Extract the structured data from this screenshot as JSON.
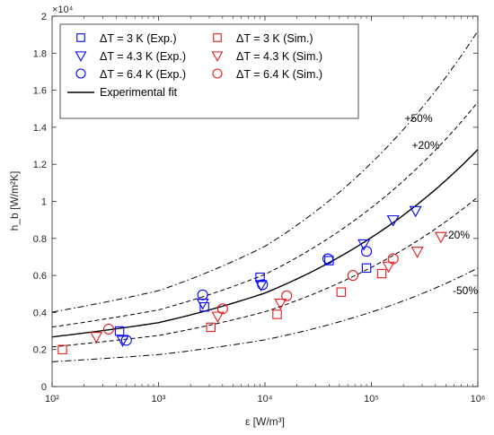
{
  "chart_data": {
    "type": "scatter",
    "xscale": "log",
    "xlim": [
      100,
      1000000
    ],
    "ylim": [
      0,
      20000
    ],
    "ylabel": "h_b [W/m²K]",
    "xlabel": "ε [W/m³]",
    "y_exponent_label": "×10⁴",
    "x_tick_labels": [
      "10²",
      "10³",
      "10⁴",
      "10⁵",
      "10⁶"
    ],
    "y_tick_labels": [
      "0",
      "0.2",
      "0.4",
      "0.6",
      "0.8",
      "1",
      "1.2",
      "1.4",
      "1.6",
      "1.8",
      "2"
    ],
    "grid": false,
    "legend_position": "top-left",
    "legend": [
      {
        "label": "ΔT = 3 K (Exp.)",
        "marker": "square",
        "color": "#0000ff"
      },
      {
        "label": "ΔT = 3 K (Sim.)",
        "marker": "square",
        "color": "#e41a1c"
      },
      {
        "label": "ΔT = 4.3 K (Exp.)",
        "marker": "triangle-down",
        "color": "#0000ff"
      },
      {
        "label": "ΔT = 4.3 K (Sim.)",
        "marker": "triangle-down",
        "color": "#e41a1c"
      },
      {
        "label": "ΔT = 6.4 K (Exp.)",
        "marker": "circle",
        "color": "#0000ff"
      },
      {
        "label": "ΔT = 6.4 K (Sim.)",
        "marker": "circle",
        "color": "#e41a1c"
      },
      {
        "label": "Experimental fit",
        "marker": "line",
        "color": "#000000"
      }
    ],
    "fit": {
      "points": [
        {
          "x": 100,
          "y": 2680
        },
        {
          "x": 1000,
          "y": 3450
        },
        {
          "x": 10000,
          "y": 5050
        },
        {
          "x": 100000,
          "y": 8050
        },
        {
          "x": 1000000,
          "y": 12800
        }
      ],
      "bands": [
        {
          "factor": 1.5,
          "label": "+50%",
          "style": "dash-dot"
        },
        {
          "factor": 1.2,
          "label": "+20%",
          "style": "dash"
        },
        {
          "factor": 0.8,
          "label": "-20%",
          "style": "dash"
        },
        {
          "factor": 0.5,
          "label": "-50%",
          "style": "dash-dot"
        }
      ]
    },
    "series": [
      {
        "name": "ΔT = 3 K (Exp.)",
        "marker": "square",
        "color": "#0000ff",
        "points": [
          [
            430,
            3000
          ],
          [
            2700,
            4300
          ],
          [
            9000,
            5900
          ],
          [
            40000,
            6800
          ],
          [
            90000,
            6400
          ]
        ]
      },
      {
        "name": "ΔT = 4.3 K (Exp.)",
        "marker": "triangle-down",
        "color": "#0000ff",
        "points": [
          [
            460,
            2500
          ],
          [
            2600,
            4500
          ],
          [
            9200,
            5500
          ],
          [
            85000,
            7700
          ],
          [
            160000,
            9000
          ],
          [
            260000,
            9500
          ]
        ]
      },
      {
        "name": "ΔT = 6.4 K (Exp.)",
        "marker": "circle",
        "color": "#0000ff",
        "points": [
          [
            500,
            2500
          ],
          [
            2600,
            4950
          ],
          [
            9500,
            5500
          ],
          [
            39000,
            6900
          ],
          [
            90000,
            7300
          ]
        ]
      },
      {
        "name": "ΔT = 3 K (Sim.)",
        "marker": "square",
        "color": "#e41a1c",
        "points": [
          [
            125,
            2000
          ],
          [
            3100,
            3200
          ],
          [
            13000,
            3900
          ],
          [
            52000,
            5100
          ],
          [
            125000,
            6100
          ]
        ]
      },
      {
        "name": "ΔT = 4.3 K (Sim.)",
        "marker": "triangle-down",
        "color": "#e41a1c",
        "points": [
          [
            260,
            2700
          ],
          [
            3600,
            3800
          ],
          [
            14000,
            4500
          ],
          [
            145000,
            6500
          ],
          [
            270000,
            7300
          ],
          [
            450000,
            8100
          ]
        ]
      },
      {
        "name": "ΔT = 6.4 K (Sim.)",
        "marker": "circle",
        "color": "#e41a1c",
        "points": [
          [
            340,
            3100
          ],
          [
            4000,
            4200
          ],
          [
            16000,
            4900
          ],
          [
            67000,
            6000
          ],
          [
            160000,
            6900
          ]
        ]
      }
    ]
  }
}
